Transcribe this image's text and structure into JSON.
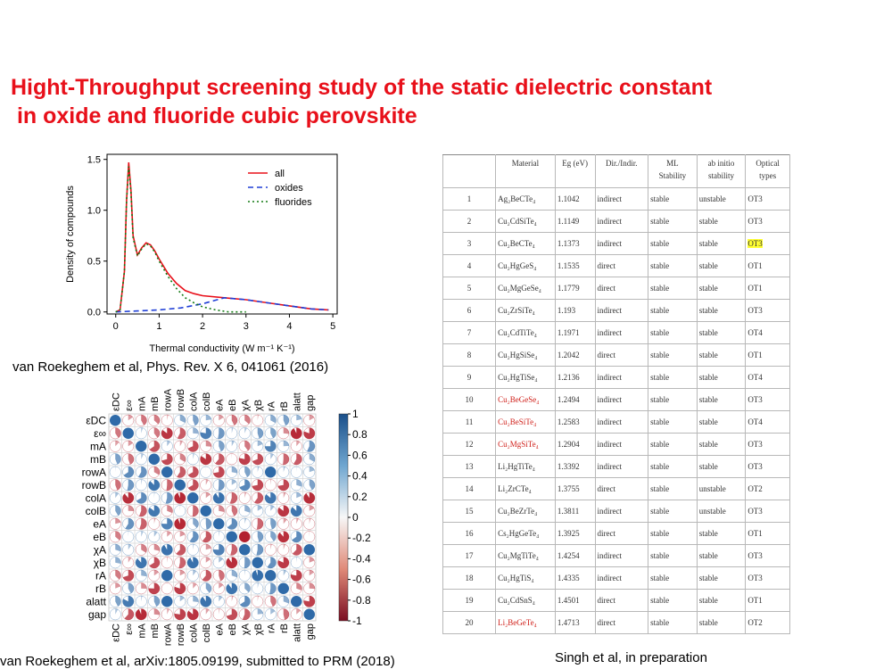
{
  "title": {
    "line1": "Hight-Throughput screening study of the static dielectric constant",
    "line2": " in oxide and fluoride cubic perovskite"
  },
  "top_chart": {
    "ylabel": "Density of compounds",
    "xlabel": "Thermal conductivity (W m⁻¹ K⁻¹)",
    "yticks": [
      "1.5",
      "1.0",
      "0.5",
      "0.0"
    ],
    "xticks": [
      "0",
      "1",
      "2",
      "3",
      "4",
      "5"
    ],
    "legend": [
      "all",
      "oxides",
      "fluorides"
    ]
  },
  "chart_data": {
    "type": "line",
    "xlabel": "Thermal conductivity (W m⁻¹ K⁻¹)",
    "ylabel": "Density of compounds",
    "xlim": [
      -0.2,
      5.1
    ],
    "ylim": [
      -0.02,
      1.55
    ],
    "legend_position": "top-right",
    "series": [
      {
        "name": "all",
        "color": "#e8101a",
        "style": "solid",
        "x": [
          0.0,
          0.1,
          0.2,
          0.25,
          0.3,
          0.35,
          0.4,
          0.5,
          0.6,
          0.7,
          0.8,
          0.9,
          1.0,
          1.2,
          1.4,
          1.6,
          1.8,
          2.0,
          2.5,
          3.0,
          3.5,
          4.0,
          4.5,
          4.9
        ],
        "y": [
          0.0,
          0.02,
          0.4,
          1.1,
          1.47,
          1.2,
          0.75,
          0.56,
          0.63,
          0.68,
          0.66,
          0.6,
          0.52,
          0.38,
          0.28,
          0.21,
          0.18,
          0.16,
          0.14,
          0.12,
          0.09,
          0.06,
          0.03,
          0.02
        ]
      },
      {
        "name": "oxides",
        "color": "#1f3fd6",
        "style": "dashed",
        "x": [
          0.0,
          0.5,
          1.0,
          1.5,
          2.0,
          2.5,
          3.0,
          3.5,
          4.0,
          4.5,
          4.9
        ],
        "y": [
          0.0,
          0.01,
          0.02,
          0.04,
          0.08,
          0.14,
          0.12,
          0.09,
          0.06,
          0.03,
          0.02
        ]
      },
      {
        "name": "fluorides",
        "color": "#137a13",
        "style": "dotted",
        "x": [
          0.0,
          0.1,
          0.2,
          0.25,
          0.3,
          0.35,
          0.4,
          0.5,
          0.6,
          0.7,
          0.8,
          0.9,
          1.0,
          1.2,
          1.4,
          1.6,
          1.8,
          2.0,
          2.3,
          2.6,
          3.0
        ],
        "y": [
          0.0,
          0.02,
          0.4,
          1.1,
          1.43,
          1.18,
          0.73,
          0.55,
          0.62,
          0.67,
          0.65,
          0.59,
          0.5,
          0.35,
          0.23,
          0.14,
          0.09,
          0.05,
          0.02,
          0.0,
          0.0
        ]
      }
    ]
  },
  "citation1": "van Roekeghem et al, Phys. Rev. X 6, 041061 (2016)",
  "heatmap": {
    "labels": [
      "εDC",
      "ε∞",
      "mA",
      "mB",
      "rowA",
      "rowB",
      "colA",
      "colB",
      "eA",
      "eB",
      "χA",
      "χB",
      "rA",
      "rB",
      "alatt",
      "gap"
    ],
    "colorbar_ticks": [
      "1",
      "0.8",
      "0.6",
      "0.4",
      "0.2",
      "0",
      "-0.2",
      "-0.4",
      "-0.6",
      "-0.8",
      "-1"
    ],
    "colors": {
      "positive": "#2f6aa8",
      "negative": "#b3202e"
    }
  },
  "citation2": "van Roekeghem et al, arXiv:1805.09199, submitted to PRM (2018)",
  "table": {
    "headers": [
      "",
      "Material",
      "Eg (eV)",
      "Dir./Indir.",
      "ML\nStability",
      "ab initio\nstability",
      "Optical\ntypes"
    ],
    "rows": [
      {
        "n": "1",
        "mat": "Ag₂BeCTe₄",
        "eg": "1.1042",
        "dir": "indirect",
        "ml": "stable",
        "ab": "unstable",
        "opt": "OT3"
      },
      {
        "n": "2",
        "mat": "Cu₂CdSiTe₄",
        "eg": "1.1149",
        "dir": "indirect",
        "ml": "stable",
        "ab": "stable",
        "opt": "OT3"
      },
      {
        "n": "3",
        "mat": "Cu₂BeCTe₄",
        "eg": "1.1373",
        "dir": "indirect",
        "ml": "stable",
        "ab": "stable",
        "opt": "OT3",
        "hl": true
      },
      {
        "n": "4",
        "mat": "Cu₂HgGeS₄",
        "eg": "1.1535",
        "dir": "direct",
        "ml": "stable",
        "ab": "stable",
        "opt": "OT1"
      },
      {
        "n": "5",
        "mat": "Cu₂MgGeSe₄",
        "eg": "1.1779",
        "dir": "direct",
        "ml": "stable",
        "ab": "stable",
        "opt": "OT1"
      },
      {
        "n": "6",
        "mat": "Cu₂ZrSiTe₄",
        "eg": "1.193",
        "dir": "indirect",
        "ml": "stable",
        "ab": "stable",
        "opt": "OT3"
      },
      {
        "n": "7",
        "mat": "Cu₂CdTiTe₄",
        "eg": "1.1971",
        "dir": "indirect",
        "ml": "stable",
        "ab": "stable",
        "opt": "OT4"
      },
      {
        "n": "8",
        "mat": "Cu₂HgSiSe₄",
        "eg": "1.2042",
        "dir": "direct",
        "ml": "stable",
        "ab": "stable",
        "opt": "OT1"
      },
      {
        "n": "9",
        "mat": "Cu₂HgTiSe₄",
        "eg": "1.2136",
        "dir": "indirect",
        "ml": "stable",
        "ab": "stable",
        "opt": "OT4"
      },
      {
        "n": "10",
        "mat": "Cu₂BeGeSe₄",
        "eg": "1.2494",
        "dir": "indirect",
        "ml": "stable",
        "ab": "stable",
        "opt": "OT3",
        "red": true
      },
      {
        "n": "11",
        "mat": "Cu₂BeSiTe₄",
        "eg": "1.2583",
        "dir": "indirect",
        "ml": "stable",
        "ab": "stable",
        "opt": "OT4",
        "red": true
      },
      {
        "n": "12",
        "mat": "Cu₂MgSiTe₄",
        "eg": "1.2904",
        "dir": "indirect",
        "ml": "stable",
        "ab": "stable",
        "opt": "OT3",
        "red": true
      },
      {
        "n": "13",
        "mat": "Li₂HgTiTe₄",
        "eg": "1.3392",
        "dir": "indirect",
        "ml": "stable",
        "ab": "stable",
        "opt": "OT3"
      },
      {
        "n": "14",
        "mat": "Li₂ZrCTe₄",
        "eg": "1.3755",
        "dir": "direct",
        "ml": "stable",
        "ab": "unstable",
        "opt": "OT2"
      },
      {
        "n": "15",
        "mat": "Cu₂BeZrTe₄",
        "eg": "1.3811",
        "dir": "indirect",
        "ml": "stable",
        "ab": "unstable",
        "opt": "OT3"
      },
      {
        "n": "16",
        "mat": "Cs₂HgGeTe₄",
        "eg": "1.3925",
        "dir": "direct",
        "ml": "stable",
        "ab": "stable",
        "opt": "OT1"
      },
      {
        "n": "17",
        "mat": "Cu₂MgTiTe₄",
        "eg": "1.4254",
        "dir": "indirect",
        "ml": "stable",
        "ab": "stable",
        "opt": "OT3"
      },
      {
        "n": "18",
        "mat": "Cu₂HgTiS₄",
        "eg": "1.4335",
        "dir": "indirect",
        "ml": "stable",
        "ab": "stable",
        "opt": "OT3"
      },
      {
        "n": "19",
        "mat": "Cu₂CdSnS₄",
        "eg": "1.4501",
        "dir": "direct",
        "ml": "stable",
        "ab": "stable",
        "opt": "OT1"
      },
      {
        "n": "20",
        "mat": "Li₂BeGeTe₄",
        "eg": "1.4713",
        "dir": "direct",
        "ml": "stable",
        "ab": "stable",
        "opt": "OT2",
        "red": true
      }
    ]
  },
  "citation3": "Singh et al, in preparation"
}
